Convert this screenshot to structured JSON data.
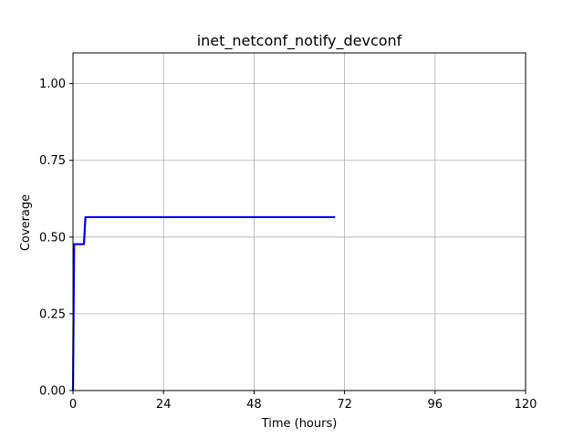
{
  "chart_data": {
    "type": "line",
    "title": "inet_netconf_notify_devconf",
    "xlabel": "Time (hours)",
    "ylabel": "Coverage",
    "xlim": [
      0,
      120
    ],
    "ylim": [
      0,
      1.1
    ],
    "xticks": [
      0,
      24,
      48,
      72,
      96,
      120
    ],
    "xtick_labels": [
      "0",
      "24",
      "48",
      "72",
      "96",
      "120"
    ],
    "yticks": [
      0,
      0.25,
      0.5,
      0.75,
      1.0
    ],
    "ytick_labels": [
      "0.00",
      "0.25",
      "0.50",
      "0.75",
      "1.00"
    ],
    "grid": true,
    "line_color": "#0000ff",
    "series": [
      {
        "x": [
          0,
          0.3,
          0.6,
          0.6,
          2.9,
          3.3,
          69.5
        ],
        "values": [
          0.0,
          0.477,
          0.477,
          0.477,
          0.477,
          0.565,
          0.565
        ]
      }
    ]
  }
}
